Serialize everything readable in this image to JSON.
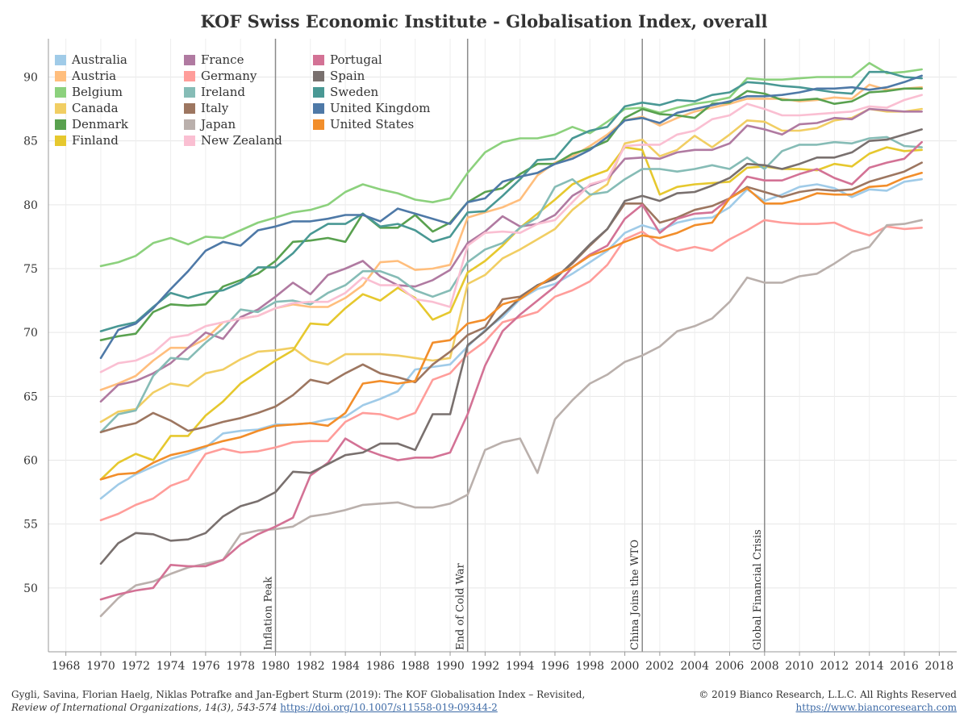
{
  "header": {
    "title": "KOF Swiss Economic Institute - Globalisation Index, overall"
  },
  "footer": {
    "citation_line1": "Gygli, Savina, Florian Haelg, Niklas Potrafke and Jan-Egbert Sturm (2019): The KOF Globalisation Index – Revisited,",
    "citation_journal": "Review of International Organizations, 14(3), 543-574",
    "citation_link": "https://doi.org/10.1007/s11558-019-09344-2",
    "copyright": "© 2019 Bianco Research, L.L.C. All Rights Reserved",
    "website": "https://www.biancoresearch.com"
  },
  "chart_data": {
    "type": "line",
    "title": "KOF Swiss Economic Institute - Globalisation Index, overall",
    "xlim": [
      1967,
      2019
    ],
    "ylim": [
      45,
      93
    ],
    "x_ticks": [
      "1968",
      "1970",
      "1972",
      "1974",
      "1976",
      "1978",
      "1980",
      "1982",
      "1984",
      "1986",
      "1988",
      "1990",
      "1992",
      "1994",
      "1996",
      "1998",
      "2000",
      "2002",
      "2004",
      "2006",
      "2008",
      "2010",
      "2012",
      "2014",
      "2016",
      "2018"
    ],
    "y_ticks": [
      "50",
      "55",
      "60",
      "65",
      "70",
      "75",
      "80",
      "85",
      "90"
    ],
    "grid": true,
    "legend_position": "top-left",
    "annotations": [
      {
        "x": 1980,
        "label": "Inflation Peak"
      },
      {
        "x": 1991,
        "label": "End of Cold War"
      },
      {
        "x": 2001,
        "label": "China Joins the WTO"
      },
      {
        "x": 2008,
        "label": "Global Financial Crisis"
      }
    ],
    "x": [
      1970,
      1971,
      1972,
      1973,
      1974,
      1975,
      1976,
      1977,
      1978,
      1979,
      1980,
      1981,
      1982,
      1983,
      1984,
      1985,
      1986,
      1987,
      1988,
      1989,
      1990,
      1991,
      1992,
      1993,
      1994,
      1995,
      1996,
      1997,
      1998,
      1999,
      2000,
      2001,
      2002,
      2003,
      2004,
      2005,
      2006,
      2007,
      2008,
      2009,
      2010,
      2011,
      2012,
      2013,
      2014,
      2015,
      2016,
      2017
    ],
    "series": [
      {
        "name": "Australia",
        "color": "#a0cbe8",
        "values": [
          57.0,
          58.1,
          58.9,
          59.5,
          60.1,
          60.5,
          61.0,
          62.1,
          62.3,
          62.4,
          62.8,
          62.8,
          62.9,
          63.2,
          63.4,
          64.3,
          64.8,
          65.4,
          67.1,
          67.3,
          67.5,
          68.9,
          70.2,
          71.2,
          72.6,
          73.4,
          73.8,
          74.6,
          75.5,
          76.4,
          77.8,
          78.4,
          78.0,
          78.6,
          78.9,
          79.0,
          79.8,
          81.2,
          80.3,
          80.8,
          81.4,
          81.6,
          81.3,
          80.6,
          81.2,
          81.1,
          81.8,
          82.0
        ]
      },
      {
        "name": "Austria",
        "color": "#ffbe7d",
        "values": [
          65.5,
          66.0,
          66.6,
          67.8,
          68.8,
          68.8,
          69.5,
          70.8,
          71.1,
          71.3,
          71.9,
          72.2,
          72.0,
          72.0,
          72.7,
          73.7,
          75.5,
          75.6,
          74.9,
          75.0,
          75.3,
          79.0,
          79.4,
          79.8,
          80.4,
          82.3,
          83.3,
          83.8,
          84.6,
          85.5,
          86.6,
          86.9,
          86.2,
          86.8,
          87.3,
          87.6,
          87.9,
          88.3,
          88.3,
          88.3,
          88.1,
          88.2,
          88.4,
          88.3,
          89.4,
          89.0,
          89.1,
          89.2
        ]
      },
      {
        "name": "Belgium",
        "color": "#8cd17d",
        "values": [
          75.2,
          75.5,
          76.0,
          77.0,
          77.4,
          76.9,
          77.5,
          77.4,
          78.0,
          78.6,
          79.0,
          79.4,
          79.6,
          80.0,
          81.0,
          81.6,
          81.2,
          80.9,
          80.4,
          80.2,
          80.5,
          82.5,
          84.1,
          84.9,
          85.2,
          85.2,
          85.5,
          86.1,
          85.6,
          86.5,
          87.5,
          87.6,
          87.2,
          87.6,
          87.9,
          88.1,
          88.4,
          89.9,
          89.8,
          89.8,
          89.9,
          90.0,
          90.0,
          90.0,
          91.1,
          90.3,
          90.4,
          90.6
        ]
      },
      {
        "name": "Canada",
        "color": "#f1ce63",
        "values": [
          63.0,
          63.8,
          64.0,
          65.3,
          66.0,
          65.8,
          66.8,
          67.1,
          67.9,
          68.5,
          68.6,
          68.8,
          67.8,
          67.5,
          68.3,
          68.3,
          68.3,
          68.2,
          68.0,
          67.8,
          68.0,
          73.8,
          74.5,
          75.8,
          76.5,
          77.3,
          78.1,
          79.6,
          80.7,
          81.6,
          84.8,
          85.1,
          83.8,
          84.3,
          85.4,
          84.5,
          85.5,
          86.6,
          86.5,
          85.8,
          85.8,
          86.0,
          86.6,
          86.8,
          87.5,
          87.3,
          87.3,
          87.5
        ]
      },
      {
        "name": "Denmark",
        "color": "#59a14f",
        "values": [
          69.4,
          69.7,
          69.9,
          71.6,
          72.2,
          72.1,
          72.2,
          73.6,
          74.1,
          74.6,
          75.6,
          77.1,
          77.2,
          77.4,
          77.1,
          79.3,
          78.2,
          78.2,
          79.2,
          77.9,
          78.6,
          80.2,
          81.0,
          81.3,
          82.4,
          83.2,
          83.2,
          84.0,
          84.4,
          85.0,
          86.8,
          87.5,
          87.1,
          87.0,
          86.8,
          87.9,
          88.0,
          88.9,
          88.7,
          88.2,
          88.2,
          88.3,
          87.9,
          88.1,
          88.8,
          88.9,
          89.1,
          89.1
        ]
      },
      {
        "name": "Finland",
        "color": "#e6c82e",
        "values": [
          58.5,
          59.8,
          60.5,
          60.0,
          61.9,
          61.9,
          63.5,
          64.6,
          66.0,
          66.9,
          67.8,
          68.6,
          70.7,
          70.6,
          71.9,
          73.0,
          72.5,
          73.5,
          72.7,
          71.0,
          71.6,
          74.7,
          75.6,
          76.8,
          78.2,
          79.3,
          80.4,
          81.6,
          82.2,
          82.7,
          84.5,
          84.3,
          80.8,
          81.4,
          81.6,
          81.7,
          81.8,
          82.9,
          83.0,
          82.8,
          82.8,
          82.7,
          83.2,
          83.0,
          84.0,
          84.5,
          84.2,
          84.3
        ]
      },
      {
        "name": "France",
        "color": "#b07aa1",
        "values": [
          64.6,
          65.9,
          66.2,
          66.8,
          67.6,
          68.8,
          70.0,
          69.5,
          71.2,
          71.8,
          72.8,
          73.9,
          73.0,
          74.5,
          75.0,
          75.6,
          74.4,
          73.7,
          73.6,
          74.1,
          74.9,
          77.0,
          77.9,
          79.1,
          78.3,
          78.5,
          79.2,
          80.7,
          81.5,
          82.0,
          83.6,
          83.7,
          83.6,
          84.1,
          84.3,
          84.3,
          84.8,
          86.2,
          85.9,
          85.5,
          86.3,
          86.4,
          86.8,
          86.7,
          87.5,
          87.4,
          87.3,
          87.3
        ]
      },
      {
        "name": "Germany",
        "color": "#ff9d9a",
        "values": [
          55.3,
          55.8,
          56.5,
          57.0,
          58.0,
          58.5,
          60.5,
          60.9,
          60.6,
          60.7,
          61.0,
          61.4,
          61.5,
          61.5,
          63.0,
          63.7,
          63.6,
          63.2,
          63.7,
          66.3,
          66.8,
          68.3,
          69.3,
          70.8,
          71.2,
          71.6,
          72.8,
          73.3,
          74.0,
          75.3,
          77.3,
          77.9,
          76.9,
          76.4,
          76.7,
          76.4,
          77.3,
          78.0,
          78.8,
          78.6,
          78.5,
          78.5,
          78.6,
          78.0,
          77.6,
          78.3,
          78.1,
          78.2
        ]
      },
      {
        "name": "Ireland",
        "color": "#86bcb6",
        "values": [
          62.2,
          63.6,
          63.9,
          66.6,
          68.0,
          67.9,
          69.2,
          70.3,
          71.8,
          71.6,
          72.4,
          72.5,
          72.2,
          73.1,
          73.7,
          74.8,
          74.8,
          74.3,
          73.3,
          72.8,
          73.3,
          75.5,
          76.5,
          77.0,
          78.2,
          79.0,
          81.4,
          82.0,
          80.8,
          81.0,
          82.0,
          82.8,
          82.8,
          82.6,
          82.8,
          83.1,
          82.8,
          83.7,
          82.8,
          84.2,
          84.7,
          84.7,
          84.9,
          84.8,
          85.2,
          85.3,
          84.6,
          84.5
        ]
      },
      {
        "name": "Italy",
        "color": "#9d7660",
        "values": [
          62.2,
          62.6,
          62.9,
          63.7,
          63.1,
          62.3,
          62.6,
          63.0,
          63.3,
          63.7,
          64.2,
          65.1,
          66.3,
          66.0,
          66.8,
          67.5,
          66.8,
          66.5,
          66.1,
          67.5,
          68.5,
          69.8,
          70.4,
          72.6,
          72.8,
          73.7,
          74.3,
          75.4,
          76.8,
          78.1,
          80.1,
          80.1,
          78.6,
          79.0,
          79.6,
          79.9,
          80.5,
          81.4,
          81.0,
          80.6,
          81.0,
          81.2,
          81.1,
          81.2,
          81.8,
          82.2,
          82.6,
          83.3
        ]
      },
      {
        "name": "Japan",
        "color": "#bab0ac",
        "values": [
          47.8,
          49.2,
          50.2,
          50.5,
          51.1,
          51.6,
          51.9,
          52.2,
          54.2,
          54.5,
          54.6,
          54.8,
          55.6,
          55.8,
          56.1,
          56.5,
          56.6,
          56.7,
          56.3,
          56.3,
          56.6,
          57.3,
          60.8,
          61.4,
          61.7,
          59.0,
          63.2,
          64.7,
          66.0,
          66.7,
          67.7,
          68.2,
          68.9,
          70.1,
          70.5,
          71.1,
          72.4,
          74.3,
          73.9,
          73.9,
          74.4,
          74.6,
          75.4,
          76.3,
          76.7,
          78.4,
          78.5,
          78.8
        ]
      },
      {
        "name": "New Zealand",
        "color": "#fabfd2",
        "values": [
          66.9,
          67.6,
          67.8,
          68.4,
          69.6,
          69.8,
          70.5,
          70.8,
          71.1,
          71.3,
          71.9,
          72.3,
          72.4,
          72.4,
          73.1,
          74.3,
          73.7,
          73.7,
          72.6,
          72.4,
          72.0,
          76.8,
          77.8,
          77.9,
          77.8,
          78.5,
          78.8,
          80.2,
          81.6,
          82.0,
          84.6,
          84.7,
          84.7,
          85.5,
          85.8,
          86.7,
          87.0,
          87.9,
          87.5,
          87.0,
          87.0,
          87.1,
          87.2,
          87.3,
          87.7,
          87.6,
          88.2,
          88.6
        ]
      },
      {
        "name": "Portugal",
        "color": "#d37295",
        "values": [
          49.1,
          49.5,
          49.8,
          50.0,
          51.8,
          51.7,
          51.7,
          52.2,
          53.4,
          54.2,
          54.8,
          55.5,
          58.8,
          59.8,
          61.7,
          60.9,
          60.4,
          60.0,
          60.2,
          60.2,
          60.6,
          63.6,
          67.4,
          70.1,
          71.4,
          72.5,
          73.6,
          75.1,
          76.1,
          76.8,
          78.9,
          80.0,
          77.8,
          78.9,
          79.3,
          79.4,
          80.5,
          82.2,
          81.9,
          81.9,
          82.4,
          82.8,
          82.1,
          81.6,
          82.9,
          83.3,
          83.6,
          84.9
        ]
      },
      {
        "name": "Spain",
        "color": "#79706e",
        "values": [
          51.9,
          53.5,
          54.3,
          54.2,
          53.7,
          53.8,
          54.3,
          55.6,
          56.4,
          56.8,
          57.5,
          59.1,
          59.0,
          59.7,
          60.4,
          60.6,
          61.3,
          61.3,
          60.8,
          63.6,
          63.6,
          69.0,
          70.1,
          71.4,
          72.7,
          73.7,
          74.2,
          75.5,
          76.9,
          78.1,
          80.3,
          80.7,
          80.3,
          80.9,
          81.0,
          81.5,
          82.1,
          83.2,
          83.1,
          82.8,
          83.2,
          83.7,
          83.7,
          84.1,
          85.0,
          85.1,
          85.5,
          85.9
        ]
      },
      {
        "name": "Sweden",
        "color": "#499894",
        "values": [
          70.1,
          70.5,
          70.8,
          72.0,
          73.1,
          72.7,
          73.1,
          73.3,
          73.9,
          75.1,
          75.1,
          76.2,
          77.7,
          78.5,
          78.5,
          79.3,
          78.3,
          78.5,
          78.0,
          77.1,
          77.5,
          79.4,
          79.5,
          80.7,
          82.0,
          83.5,
          83.6,
          85.2,
          85.8,
          86.1,
          87.7,
          88.0,
          87.8,
          88.2,
          88.1,
          88.6,
          88.8,
          89.6,
          89.5,
          89.3,
          89.2,
          89.0,
          88.8,
          88.7,
          90.4,
          90.4,
          90.0,
          89.9
        ]
      },
      {
        "name": "United Kingdom",
        "color": "#4e79a7",
        "values": [
          68.0,
          70.2,
          70.7,
          71.9,
          73.4,
          74.8,
          76.4,
          77.1,
          76.8,
          78.0,
          78.3,
          78.7,
          78.7,
          78.9,
          79.2,
          79.2,
          78.7,
          79.7,
          79.3,
          78.9,
          78.5,
          80.2,
          80.5,
          81.8,
          82.2,
          82.5,
          83.2,
          83.6,
          84.3,
          85.3,
          86.6,
          86.8,
          86.4,
          87.2,
          87.5,
          87.8,
          88.1,
          88.5,
          88.5,
          88.6,
          88.8,
          89.1,
          89.1,
          89.2,
          89.0,
          89.2,
          89.6,
          90.1
        ]
      },
      {
        "name": "United States",
        "color": "#f28e2b",
        "values": [
          58.5,
          58.9,
          59.0,
          59.8,
          60.4,
          60.7,
          61.1,
          61.5,
          61.8,
          62.3,
          62.7,
          62.8,
          62.9,
          62.7,
          63.7,
          66.0,
          66.2,
          66.0,
          66.2,
          69.2,
          69.4,
          70.7,
          71.0,
          72.2,
          72.6,
          73.6,
          74.5,
          75.1,
          76.0,
          76.5,
          77.1,
          77.6,
          77.4,
          77.8,
          78.4,
          78.6,
          80.5,
          81.3,
          80.1,
          80.1,
          80.4,
          80.9,
          80.8,
          80.8,
          81.4,
          81.5,
          82.1,
          82.5
        ]
      }
    ]
  }
}
